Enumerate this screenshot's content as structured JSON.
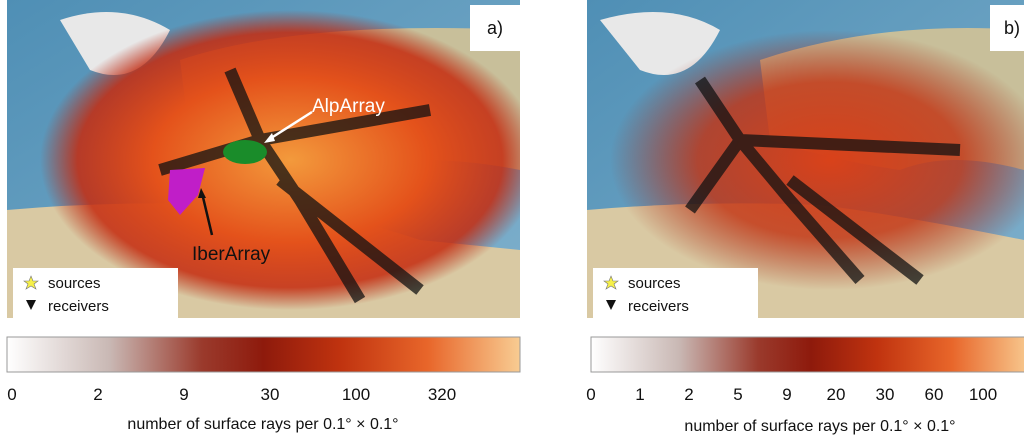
{
  "panels": [
    {
      "label": "a)",
      "annotations": [
        "AlpArray",
        "IberArray"
      ],
      "legend": {
        "sources": "sources",
        "receivers": "receivers"
      },
      "colorbar": {
        "ticks": [
          0,
          2,
          9,
          30,
          100,
          320
        ],
        "label": "number of surface rays per 0.1° × 0.1°"
      }
    },
    {
      "label": "b)",
      "legend": {
        "sources": "sources",
        "receivers": "receivers"
      },
      "colorbar": {
        "ticks": [
          0,
          1,
          2,
          5,
          9,
          20,
          30,
          60,
          100
        ],
        "label": "number of surface rays per 0.1° × 0.1°"
      }
    }
  ]
}
